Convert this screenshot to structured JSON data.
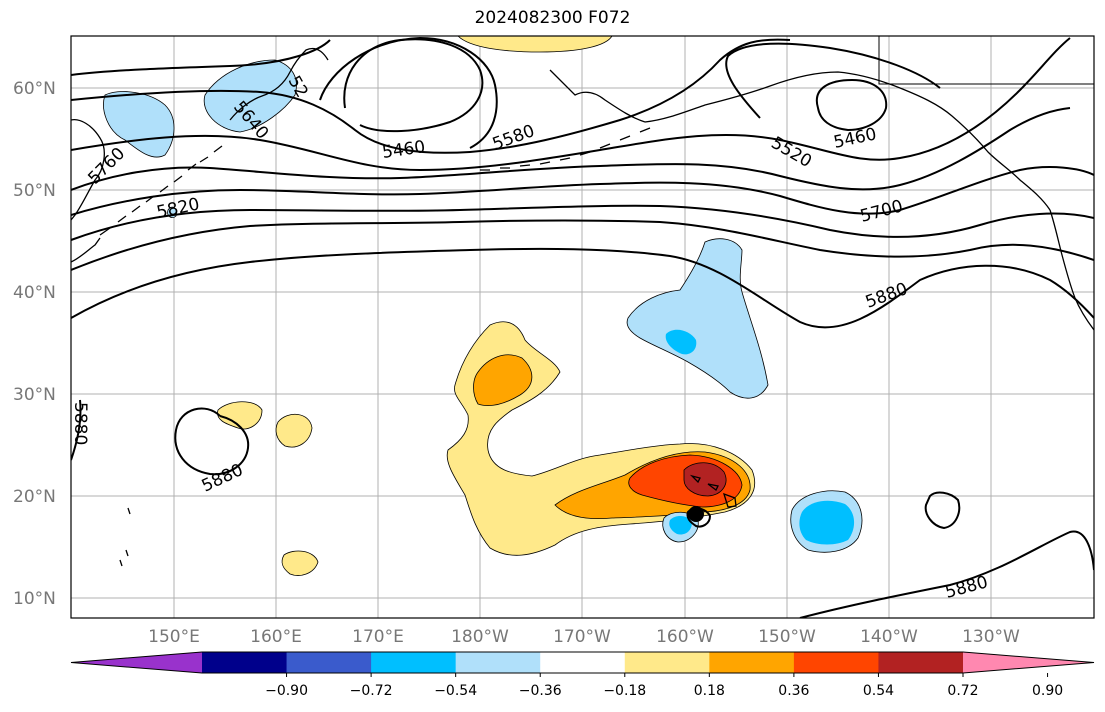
{
  "title": "2024082300 F072",
  "lat_labels": [
    "60°N",
    "50°N",
    "40°N",
    "30°N",
    "20°N",
    "10°N"
  ],
  "lon_labels": [
    "150°E",
    "160°E",
    "170°E",
    "180°W",
    "170°W",
    "160°W",
    "150°W",
    "140°W",
    "130°W"
  ],
  "contour_labels": {
    "c5640": "5640",
    "c5520_nw": "52",
    "c5760": "5760",
    "c5820": "5820",
    "c5460_a": "5460",
    "c5580": "5580",
    "c5520": "5520",
    "c5460_b": "5460",
    "c5700": "5700",
    "c5880_n": "5880",
    "c5880_w": "5880",
    "c5880_left": "5880",
    "c5880_se": "5880"
  },
  "colorbar": {
    "colors": [
      "#9932cc",
      "#00008b",
      "#3a5bcc",
      "#00bfff",
      "#b0e0fa",
      "#ffffff",
      "#ffe98a",
      "#ffa500",
      "#ff4500",
      "#b22222",
      "#ff88b0"
    ],
    "ticks": [
      "−0.90",
      "−0.72",
      "−0.54",
      "−0.36",
      "−0.18",
      "0.18",
      "0.36",
      "0.54",
      "0.72",
      "0.90"
    ]
  }
}
